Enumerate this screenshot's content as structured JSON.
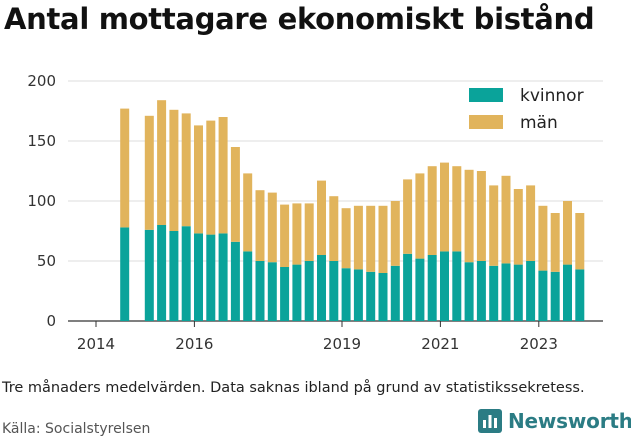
{
  "title": "Antal mottagare ekonomiskt bistånd",
  "note": "Tre månaders medelvärden. Data saknas ibland på grund av statistikssekretess.",
  "source": "Källa: Socialstyrelsen",
  "brand": {
    "name": "Newsworthy",
    "icon": "bar-chart-logo-icon",
    "color": "#2b7c84"
  },
  "chart_data": {
    "type": "bar",
    "stacked": true,
    "x_start": "2014-01",
    "x_ticks": [
      "2014",
      "2016",
      "2019",
      "2021",
      "2023"
    ],
    "y_ticks": [
      "0",
      "50",
      "100",
      "150",
      "200"
    ],
    "ylim": [
      0,
      200
    ],
    "grid": true,
    "legend": "top-right",
    "categories": [
      "2014-Q3",
      "2015-Q1",
      "2015-Q2",
      "2015-Q3",
      "2015-Q4",
      "2016-Q1",
      "2016-Q2",
      "2016-Q3",
      "2016-Q4",
      "2017-Q1",
      "2017-Q2",
      "2017-Q3",
      "2017-Q4",
      "2018-Q1",
      "2018-Q2",
      "2018-Q3",
      "2018-Q4",
      "2019-Q1",
      "2019-Q2",
      "2019-Q3",
      "2019-Q4",
      "2020-Q1",
      "2020-Q2",
      "2020-Q3",
      "2020-Q4",
      "2021-Q1",
      "2021-Q2",
      "2021-Q3",
      "2021-Q4",
      "2022-Q1",
      "2022-Q2",
      "2022-Q3",
      "2022-Q4",
      "2023-Q1",
      "2023-Q2",
      "2023-Q3",
      "2023-Q4"
    ],
    "series": [
      {
        "name": "kvinnor",
        "color": "#0aa39a",
        "values": [
          78,
          76,
          80,
          75,
          79,
          73,
          72,
          73,
          66,
          58,
          50,
          49,
          45,
          47,
          50,
          55,
          50,
          44,
          43,
          41,
          40,
          46,
          56,
          52,
          55,
          58,
          58,
          49,
          50,
          46,
          48,
          47,
          50,
          42,
          41,
          47,
          43
        ]
      },
      {
        "name": "män",
        "color": "#e1b45c",
        "values": [
          99,
          95,
          104,
          101,
          94,
          90,
          95,
          97,
          79,
          65,
          59,
          58,
          52,
          51,
          48,
          62,
          54,
          50,
          53,
          55,
          56,
          54,
          62,
          71,
          74,
          74,
          71,
          77,
          75,
          67,
          73,
          63,
          63,
          54,
          49,
          53,
          47
        ]
      }
    ]
  }
}
